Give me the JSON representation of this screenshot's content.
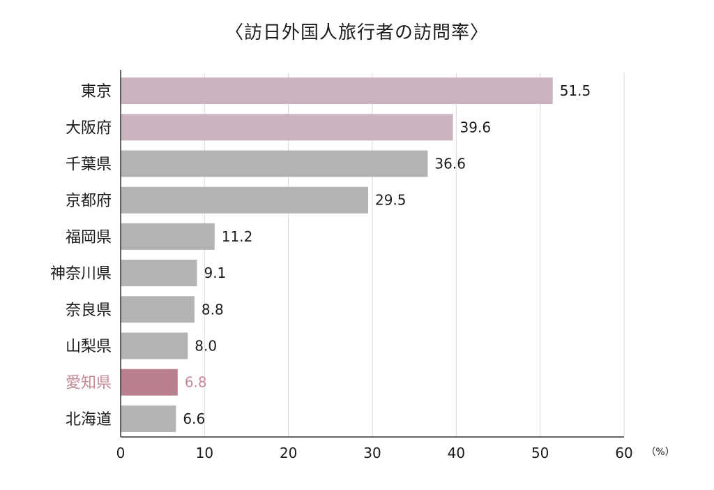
{
  "chart_data": {
    "type": "bar",
    "orientation": "horizontal",
    "title": "〈訪日外国人旅行者の訪問率〉",
    "unit": "（%）",
    "categories": [
      "東京",
      "大阪府",
      "千葉県",
      "京都府",
      "福岡県",
      "神奈川県",
      "奈良県",
      "山梨県",
      "愛知県",
      "北海道"
    ],
    "values": [
      51.5,
      39.6,
      36.6,
      29.5,
      11.2,
      9.1,
      8.8,
      8.0,
      6.8,
      6.6
    ],
    "value_labels": [
      "51.5",
      "39.6",
      "36.6",
      "29.5",
      "11.2",
      "9.1",
      "8.8",
      "8.0",
      "6.8",
      "6.6"
    ],
    "xlim": [
      0,
      60
    ],
    "xticks": [
      "0",
      "10",
      "20",
      "30",
      "40",
      "50",
      "60"
    ],
    "grid": true,
    "legend": "none",
    "colors": {
      "top_bars": "#c9b3bf",
      "default_bar": "#b3b3b3",
      "highlight_bar": "#b8808c",
      "highlight_text": "#c48a96",
      "gridline": "#d9d9d9",
      "axis": "#333333"
    },
    "top_categories": [
      "東京",
      "大阪府"
    ],
    "highlight_category": "愛知県"
  }
}
